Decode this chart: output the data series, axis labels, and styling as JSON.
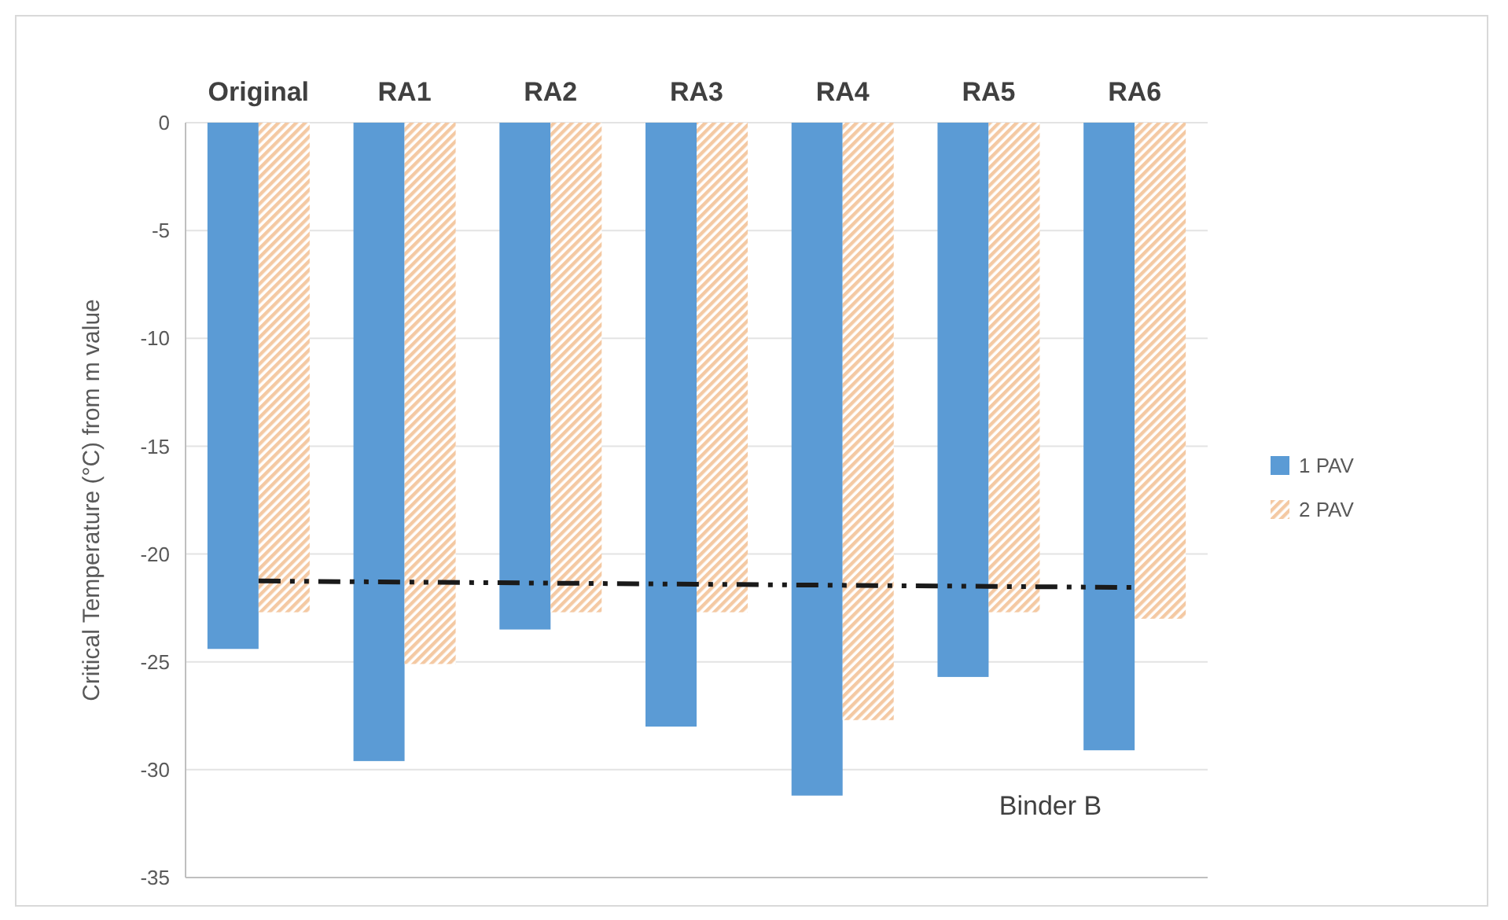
{
  "chart_data": {
    "type": "bar",
    "ylabel": "Critical Temperature (°C) from m value",
    "categories": [
      "Original",
      "RA1",
      "RA2",
      "RA3",
      "RA4",
      "RA5",
      "RA6"
    ],
    "series": [
      {
        "name": "1 PAV",
        "color": "#5b9bd5",
        "values": [
          -24.4,
          -29.6,
          -23.5,
          -28.0,
          -31.2,
          -25.7,
          -29.1
        ]
      },
      {
        "name": "2 PAV",
        "color": "#f4c9a3",
        "values": [
          -22.7,
          -25.1,
          -22.7,
          -22.7,
          -27.7,
          -22.7,
          -23.0
        ]
      },
      {
        "type": "line",
        "color": "#1a1a1a",
        "line_style": "dashed",
        "values": [
          -21.25,
          -21.3,
          -21.35,
          -21.4,
          -21.45,
          -21.5,
          -21.55
        ]
      }
    ],
    "ylim": [
      -35,
      0
    ],
    "yticks": [
      -35,
      -30,
      -25,
      -20,
      -15,
      -10,
      -5,
      0
    ],
    "grid": "y",
    "legend": "right",
    "annotations": [
      "Binder B"
    ]
  }
}
